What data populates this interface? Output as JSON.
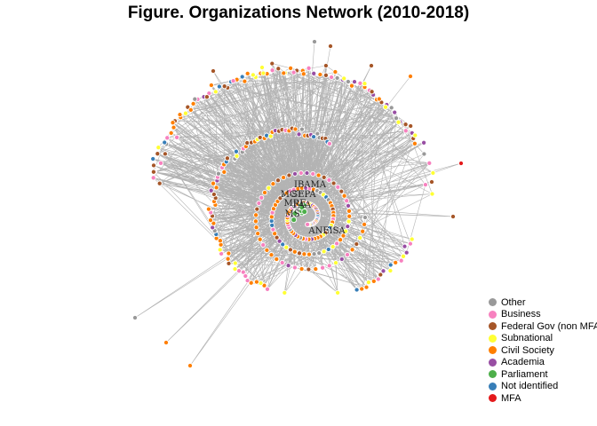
{
  "figure": {
    "title": "Figure. Organizations Network (2010-2018)"
  },
  "chart_data": {
    "type": "network",
    "edge_color": "#a6a6a6",
    "node_labels": [
      "IBAMA",
      "MCT",
      "SEPA",
      "MRE",
      "FAA",
      "MS",
      "ANEISA"
    ],
    "legend": [
      {
        "name": "Other",
        "color": "#999999"
      },
      {
        "name": "Business",
        "color": "#f781bf"
      },
      {
        "name": "Federal Gov (non MFA)",
        "color": "#a65628"
      },
      {
        "name": "Subnational",
        "color": "#ffff33"
      },
      {
        "name": "Civil Society",
        "color": "#ff7f00"
      },
      {
        "name": "Academia",
        "color": "#984ea3"
      },
      {
        "name": "Parliament",
        "color": "#4daf4a"
      },
      {
        "name": "Not identified",
        "color": "#377eb8"
      },
      {
        "name": "MFA",
        "color": "#e41a1c"
      }
    ],
    "legend_position": "bottom-right"
  }
}
